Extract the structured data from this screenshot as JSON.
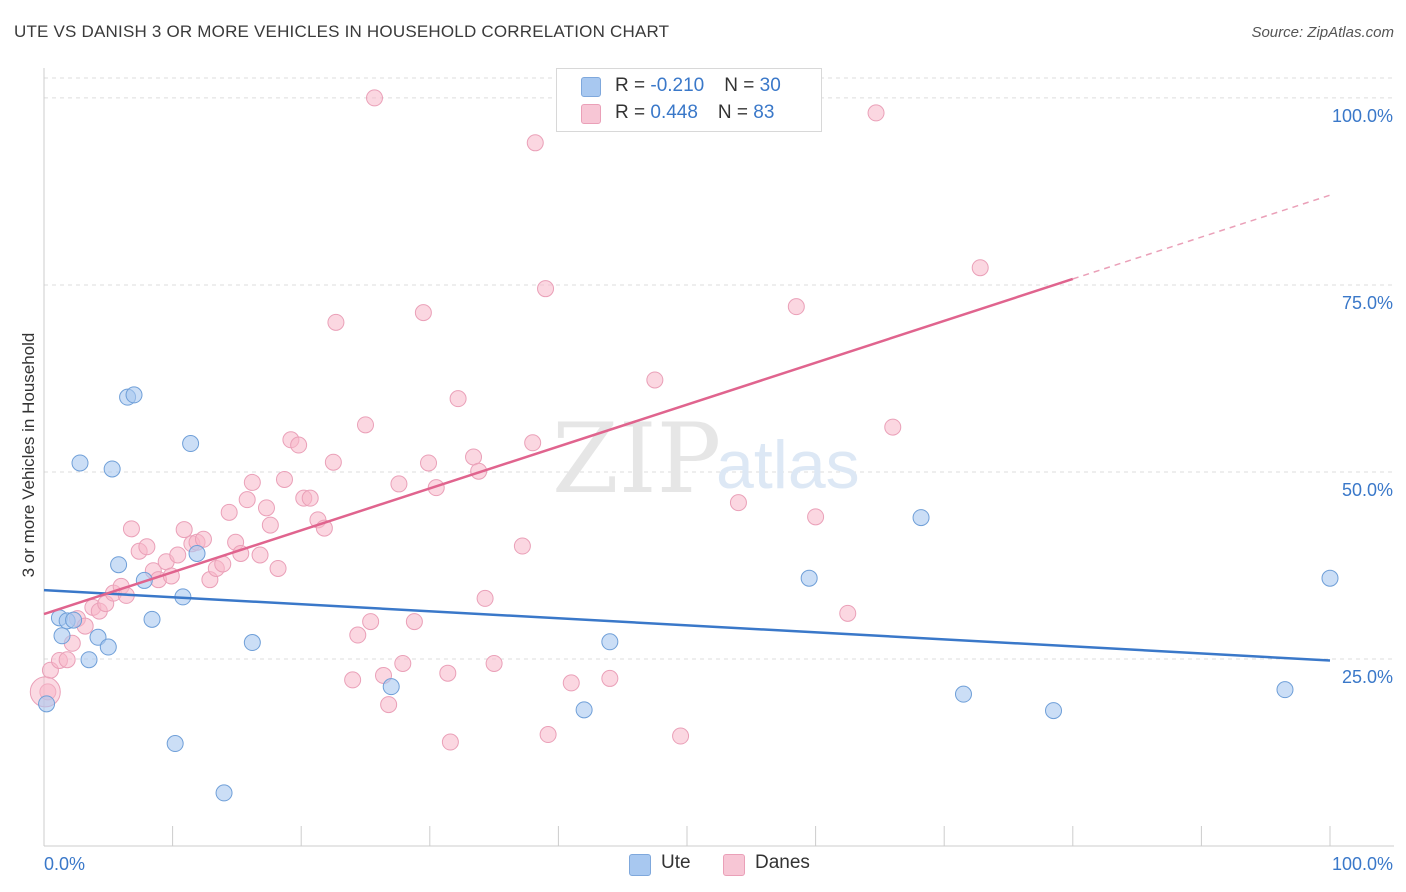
{
  "header": {
    "title": "UTE VS DANISH 3 OR MORE VEHICLES IN HOUSEHOLD CORRELATION CHART",
    "source": "Source: ZipAtlas.com"
  },
  "watermark": {
    "zip": "ZIP",
    "atlas": "atlas"
  },
  "legend": {
    "rows": [
      {
        "r_label": "R = ",
        "r_value": "-0.210",
        "n_label": "N = ",
        "n_value": "30",
        "color": "#a8c8f0"
      },
      {
        "r_label": "R = ",
        "r_value": "0.448",
        "n_label": "N = ",
        "n_value": "83",
        "color": "#f7b6c8"
      }
    ]
  },
  "bottom_legend": {
    "ute": "Ute",
    "danes": "Danes"
  },
  "chart_data": {
    "type": "scatter",
    "ylabel": "3 or more Vehicles in Household",
    "xlim": [
      0,
      100
    ],
    "ylim": [
      0,
      104
    ],
    "x_ticks": [
      "0.0%",
      "100.0%"
    ],
    "y_ticks": [
      {
        "value": 25,
        "label": "25.0%"
      },
      {
        "value": 50,
        "label": "50.0%"
      },
      {
        "value": 75,
        "label": "75.0%"
      },
      {
        "value": 100,
        "label": "100.0%"
      }
    ],
    "grid": "horizontal dashed",
    "colors": {
      "ute": "#3a78c9",
      "ute_fill": "#a8c8f0",
      "danes": "#e0648e",
      "danes_fill": "#f7b6c8",
      "axis_text": "#3a78c9"
    },
    "series": [
      {
        "name": "Ute",
        "trend": {
          "x": [
            0,
            100
          ],
          "y": [
            34.2,
            24.8
          ]
        },
        "points": [
          [
            0.2,
            19.0
          ],
          [
            1.4,
            28.1
          ],
          [
            1.2,
            30.5
          ],
          [
            1.8,
            30.1
          ],
          [
            2.3,
            30.2
          ],
          [
            2.8,
            51.2
          ],
          [
            3.5,
            24.9
          ],
          [
            4.2,
            27.9
          ],
          [
            5.0,
            26.6
          ],
          [
            5.3,
            50.4
          ],
          [
            5.8,
            37.6
          ],
          [
            6.5,
            60.0
          ],
          [
            7.0,
            60.3
          ],
          [
            7.8,
            35.5
          ],
          [
            8.4,
            30.3
          ],
          [
            10.2,
            13.7
          ],
          [
            10.8,
            33.3
          ],
          [
            11.4,
            53.8
          ],
          [
            11.9,
            39.1
          ],
          [
            14.0,
            7.1
          ],
          [
            16.2,
            27.2
          ],
          [
            27.0,
            21.3
          ],
          [
            42.0,
            18.2
          ],
          [
            44.0,
            27.3
          ],
          [
            59.5,
            35.8
          ],
          [
            68.2,
            43.9
          ],
          [
            71.5,
            20.3
          ],
          [
            78.5,
            18.1
          ],
          [
            96.5,
            20.9
          ],
          [
            100.0,
            35.8
          ]
        ]
      },
      {
        "name": "Danes",
        "trend": {
          "x": [
            0,
            80
          ],
          "y": [
            31.0,
            75.8
          ]
        },
        "trend_extension": {
          "x": [
            80,
            100
          ],
          "y": [
            75.8,
            87.0
          ]
        },
        "points": [
          [
            0.3,
            20.6
          ],
          [
            0.5,
            23.5
          ],
          [
            1.2,
            24.8
          ],
          [
            1.8,
            24.9
          ],
          [
            2.2,
            27.1
          ],
          [
            2.6,
            30.4
          ],
          [
            3.2,
            29.4
          ],
          [
            3.8,
            31.9
          ],
          [
            4.3,
            31.4
          ],
          [
            4.8,
            32.4
          ],
          [
            5.4,
            33.8
          ],
          [
            6.0,
            34.7
          ],
          [
            6.4,
            33.5
          ],
          [
            6.8,
            42.4
          ],
          [
            7.4,
            39.4
          ],
          [
            8.0,
            40.0
          ],
          [
            8.5,
            36.8
          ],
          [
            8.9,
            35.6
          ],
          [
            9.5,
            38.0
          ],
          [
            9.9,
            36.1
          ],
          [
            10.4,
            38.9
          ],
          [
            10.9,
            42.3
          ],
          [
            11.5,
            40.4
          ],
          [
            11.9,
            40.6
          ],
          [
            12.4,
            41.0
          ],
          [
            12.9,
            35.6
          ],
          [
            13.4,
            37.1
          ],
          [
            13.9,
            37.7
          ],
          [
            14.4,
            44.6
          ],
          [
            14.9,
            40.6
          ],
          [
            15.3,
            39.1
          ],
          [
            15.8,
            46.3
          ],
          [
            16.2,
            48.6
          ],
          [
            16.8,
            38.9
          ],
          [
            17.3,
            45.2
          ],
          [
            17.6,
            42.9
          ],
          [
            18.2,
            37.1
          ],
          [
            18.7,
            49.0
          ],
          [
            19.2,
            54.3
          ],
          [
            19.8,
            53.6
          ],
          [
            20.2,
            46.5
          ],
          [
            20.7,
            46.5
          ],
          [
            21.3,
            43.6
          ],
          [
            21.8,
            42.5
          ],
          [
            22.5,
            51.3
          ],
          [
            22.7,
            70.0
          ],
          [
            24.0,
            22.2
          ],
          [
            24.4,
            28.2
          ],
          [
            25.0,
            56.3
          ],
          [
            25.4,
            30.0
          ],
          [
            25.7,
            100.0
          ],
          [
            26.4,
            22.8
          ],
          [
            26.8,
            18.9
          ],
          [
            27.6,
            48.4
          ],
          [
            27.9,
            24.4
          ],
          [
            28.8,
            30.0
          ],
          [
            29.5,
            71.3
          ],
          [
            29.9,
            51.2
          ],
          [
            30.5,
            47.9
          ],
          [
            31.4,
            23.1
          ],
          [
            31.6,
            13.9
          ],
          [
            32.2,
            59.8
          ],
          [
            33.4,
            52.0
          ],
          [
            33.8,
            50.1
          ],
          [
            34.3,
            33.1
          ],
          [
            35.0,
            24.4
          ],
          [
            37.2,
            40.1
          ],
          [
            38.0,
            53.9
          ],
          [
            38.2,
            94.0
          ],
          [
            39.0,
            74.5
          ],
          [
            39.2,
            14.9
          ],
          [
            41.0,
            21.8
          ],
          [
            44.0,
            22.4
          ],
          [
            47.5,
            62.3
          ],
          [
            49.5,
            14.7
          ],
          [
            52.0,
            100.0
          ],
          [
            54.0,
            45.9
          ],
          [
            58.5,
            72.1
          ],
          [
            62.5,
            31.1
          ],
          [
            64.7,
            98.0
          ],
          [
            72.8,
            77.3
          ],
          [
            66.0,
            56.0
          ],
          [
            60.0,
            44.0
          ]
        ]
      }
    ]
  }
}
